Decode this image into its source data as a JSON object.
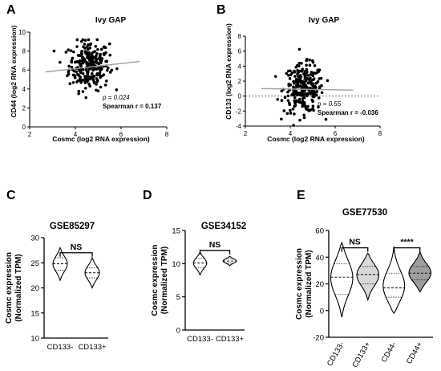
{
  "chart_data": [
    {
      "panel": "A",
      "type": "scatter",
      "title": "Ivy GAP",
      "xlabel": "Cosmc (log2 RNA expression)",
      "ylabel": "CD44 (log2 RNA expression)",
      "xlim": [
        2,
        8
      ],
      "ylim": [
        0,
        10
      ],
      "xticks": [
        "2",
        "4",
        "6",
        "8"
      ],
      "yticks": [
        "0",
        "2",
        "4",
        "6",
        "8",
        "10"
      ],
      "trend": {
        "x": [
          2.7,
          6.8
        ],
        "y": [
          5.8,
          6.9
        ]
      },
      "annotation": {
        "p": "p = 0.024",
        "r": "Spearman   r = 0.137"
      },
      "n_points": 260,
      "x_center": 4.6,
      "x_spread": 0.8,
      "y_center": 6.5,
      "y_spread": 1.3
    },
    {
      "panel": "B",
      "type": "scatter",
      "title": "Ivy GAP",
      "xlabel": "Cosmc (log2 RNA expression)",
      "ylabel": "CD133 (log2 RNA expression)",
      "xlim": [
        2,
        8
      ],
      "ylim": [
        -4,
        8
      ],
      "xticks": [
        "2",
        "4",
        "6",
        "8"
      ],
      "yticks": [
        "-4",
        "-2",
        "0",
        "2",
        "4",
        "6",
        "8"
      ],
      "trend": {
        "x": [
          2.7,
          6.8
        ],
        "y": [
          1.0,
          0.8
        ]
      },
      "annotation": {
        "p": "p = 0.55",
        "r": "Spearman   r = -0.036"
      },
      "n_points": 260,
      "x_center": 4.6,
      "x_spread": 0.8,
      "y_center": 1.0,
      "y_spread": 1.6
    },
    {
      "panel": "C",
      "type": "violin",
      "title": "GSE85297",
      "ylabel": "Cosmc expression\n(Normalized TPM)",
      "categories": [
        "CD133-",
        "CD133+"
      ],
      "ylim": [
        10,
        30
      ],
      "yticks": [
        "10",
        "15",
        "20",
        "25",
        "30"
      ],
      "violins": [
        {
          "min": 21.5,
          "q1": 23.5,
          "median": 24.8,
          "q3": 26.0,
          "max": 28.0,
          "width": 0.45
        },
        {
          "min": 20.0,
          "q1": 22.0,
          "median": 23.0,
          "q3": 24.0,
          "max": 26.0,
          "width": 0.45
        }
      ],
      "brackets": [
        {
          "from": 0,
          "to": 1,
          "label": "NS",
          "y": 27.0
        }
      ]
    },
    {
      "panel": "D",
      "type": "violin",
      "title": "GSE34152",
      "ylabel": "Cosmc expression\n(Normalized TPM)",
      "categories": [
        "CD133-",
        "CD133+"
      ],
      "ylim": [
        0,
        15
      ],
      "yticks": [
        "0",
        "5",
        "10",
        "15"
      ],
      "violins": [
        {
          "min": 8.3,
          "q1": 9.4,
          "median": 10.1,
          "q3": 10.8,
          "max": 11.7,
          "width": 0.45
        },
        {
          "min": 9.7,
          "q1": 10.1,
          "median": 10.4,
          "q3": 10.7,
          "max": 11.1,
          "width": 0.45
        }
      ],
      "brackets": [
        {
          "from": 0,
          "to": 1,
          "label": "NS",
          "y": 12.0
        }
      ]
    },
    {
      "panel": "E",
      "type": "violin",
      "title": "GSE77530",
      "ylabel": "Cosmc expression\n(Normalized TPM)",
      "categories": [
        "CD133-",
        "CD133+",
        "CD44-",
        "CD44+"
      ],
      "ylim": [
        -20,
        60
      ],
      "yticks": [
        "-20",
        "0",
        "20",
        "40",
        "60"
      ],
      "violins": [
        {
          "min": -5,
          "q1": 12,
          "median": 25,
          "q3": 35,
          "max": 51,
          "width": 0.85,
          "color": "#ffffff"
        },
        {
          "min": 8,
          "q1": 20,
          "median": 27,
          "q3": 33,
          "max": 43,
          "width": 0.85,
          "color": "#d9d9d9"
        },
        {
          "min": -2,
          "q1": 10,
          "median": 17,
          "q3": 28,
          "max": 48,
          "width": 0.85,
          "color": "#ffffff"
        },
        {
          "min": 14,
          "q1": 23,
          "median": 28,
          "q3": 33,
          "max": 44,
          "width": 0.85,
          "color": "#9e9e9e"
        }
      ],
      "brackets": [
        {
          "from": 0,
          "to": 1,
          "label": "NS",
          "y": 47
        },
        {
          "from": 2,
          "to": 3,
          "label": "****",
          "y": 47
        }
      ]
    }
  ]
}
